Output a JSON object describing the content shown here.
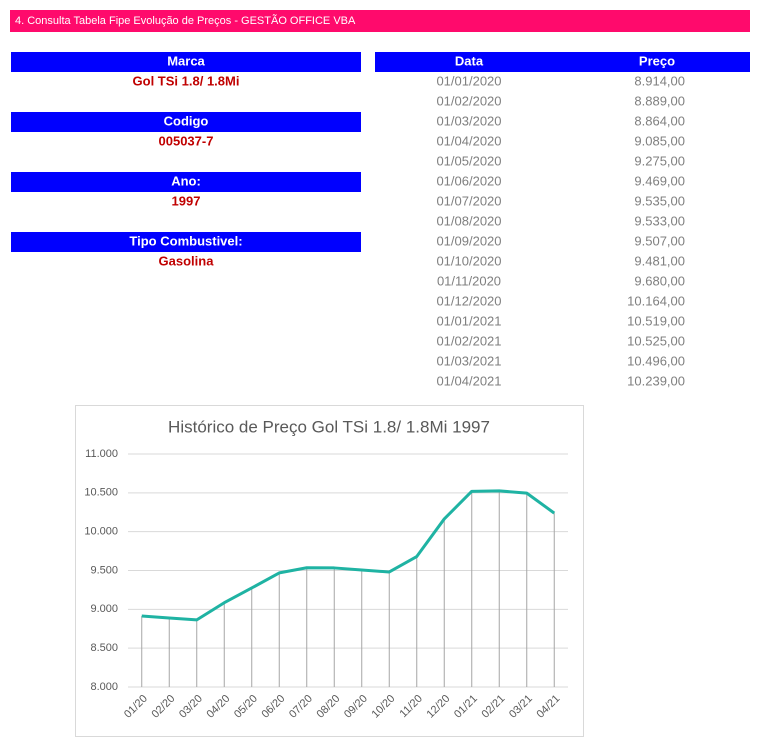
{
  "header": {
    "title": "4. Consulta Tabela Fipe Evolução de Preços - GESTÃO OFFICE VBA"
  },
  "fields": [
    {
      "label": "Marca",
      "value": "Gol TSi 1.8/ 1.8Mi"
    },
    {
      "label": "Codigo",
      "value": "005037-7"
    },
    {
      "label": "Ano:",
      "value": "1997"
    },
    {
      "label": "Tipo Combustivel:",
      "value": "Gasolina"
    }
  ],
  "table": {
    "columns": [
      "Data",
      "Preço"
    ],
    "rows": [
      [
        "01/01/2020",
        "8.914,00"
      ],
      [
        "01/02/2020",
        "8.889,00"
      ],
      [
        "01/03/2020",
        "8.864,00"
      ],
      [
        "01/04/2020",
        "9.085,00"
      ],
      [
        "01/05/2020",
        "9.275,00"
      ],
      [
        "01/06/2020",
        "9.469,00"
      ],
      [
        "01/07/2020",
        "9.535,00"
      ],
      [
        "01/08/2020",
        "9.533,00"
      ],
      [
        "01/09/2020",
        "9.507,00"
      ],
      [
        "01/10/2020",
        "9.481,00"
      ],
      [
        "01/11/2020",
        "9.680,00"
      ],
      [
        "01/12/2020",
        "10.164,00"
      ],
      [
        "01/01/2021",
        "10.519,00"
      ],
      [
        "01/02/2021",
        "10.525,00"
      ],
      [
        "01/03/2021",
        "10.496,00"
      ],
      [
        "01/04/2021",
        "10.239,00"
      ]
    ]
  },
  "chart_data": {
    "type": "line",
    "title": "Histórico de Preço Gol TSi 1.8/ 1.8Mi 1997",
    "categories": [
      "01/20",
      "02/20",
      "03/20",
      "04/20",
      "05/20",
      "06/20",
      "07/20",
      "08/20",
      "09/20",
      "10/20",
      "11/20",
      "12/20",
      "01/21",
      "02/21",
      "03/21",
      "04/21"
    ],
    "series": [
      {
        "name": "Preço",
        "color": "#1fb3a3",
        "values": [
          8914,
          8889,
          8864,
          9085,
          9275,
          9469,
          9535,
          9533,
          9507,
          9481,
          9680,
          10164,
          10519,
          10525,
          10496,
          10239
        ]
      }
    ],
    "ylim": [
      8000,
      11000
    ],
    "yticks": [
      {
        "value": 8000,
        "label": "8.000"
      },
      {
        "value": 8500,
        "label": "8.500"
      },
      {
        "value": 9000,
        "label": "9.000"
      },
      {
        "value": 9500,
        "label": "9.500"
      },
      {
        "value": 10000,
        "label": "10.000"
      },
      {
        "value": 10500,
        "label": "10.500"
      },
      {
        "value": 11000,
        "label": "11.000"
      }
    ],
    "grid": true,
    "drop_lines": true
  }
}
